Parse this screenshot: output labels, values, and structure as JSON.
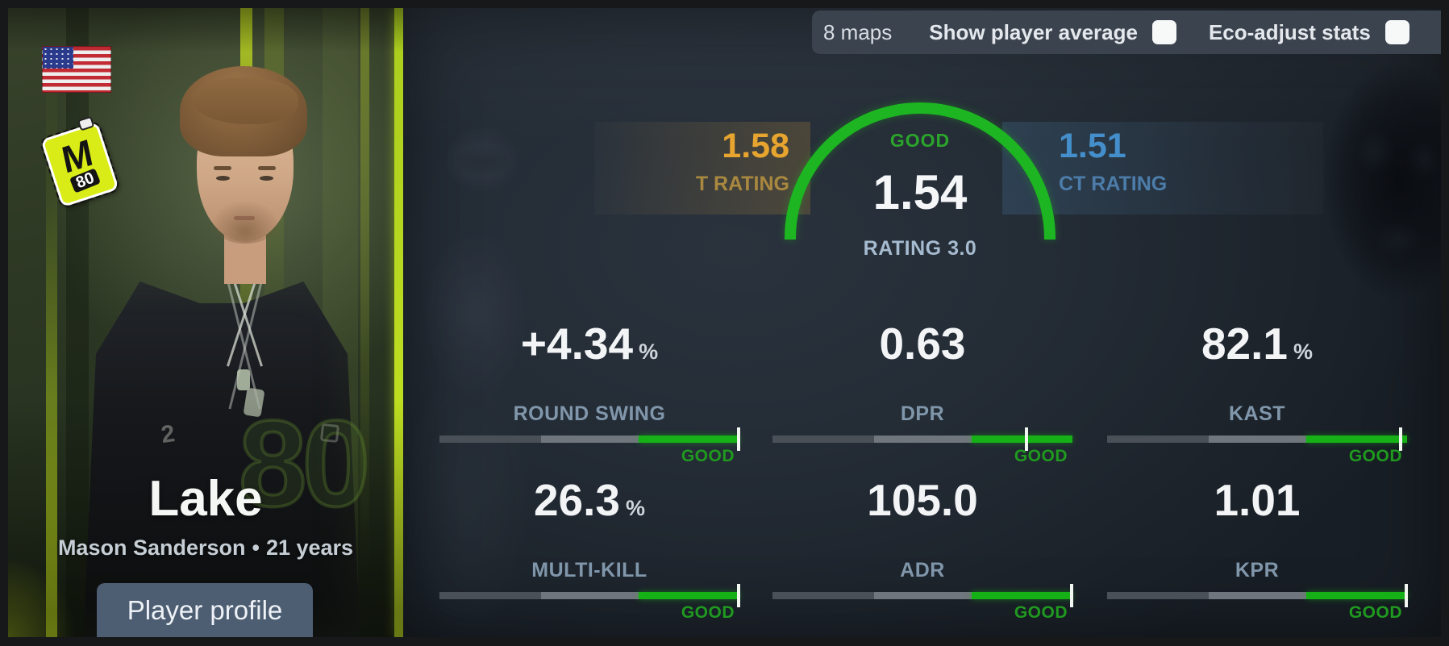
{
  "filters": {
    "maps_label": "8 maps",
    "toggles": [
      {
        "label": "Show player average",
        "checked": false
      },
      {
        "label": "Eco-adjust stats",
        "checked": false
      }
    ]
  },
  "player": {
    "nickname": "Lake",
    "real_name": "Mason Sanderson",
    "separator": "•",
    "age": "21 years",
    "country": "United States",
    "team": "M80",
    "team_logo_m": "M",
    "team_logo_80": "80",
    "watermark": "80",
    "profile_button_label": "Player profile"
  },
  "gauge": {
    "grade": "GOOD",
    "rating_value": "1.54",
    "rating_scale": "RATING 3.0",
    "t_rating_value": "1.58",
    "t_rating_label": "T RATING",
    "ct_rating_value": "1.51",
    "ct_rating_label": "CT RATING"
  },
  "stats": [
    {
      "value": "+4.34",
      "suffix": "%",
      "label": "ROUND SWING",
      "grade": "GOOD",
      "marker_pct": 100
    },
    {
      "value": "0.63",
      "suffix": "",
      "label": "DPR",
      "grade": "GOOD",
      "marker_pct": 85
    },
    {
      "value": "82.1",
      "suffix": "%",
      "label": "KAST",
      "grade": "GOOD",
      "marker_pct": 98
    },
    {
      "value": "26.3",
      "suffix": "%",
      "label": "MULTI-KILL",
      "grade": "GOOD",
      "marker_pct": 100
    },
    {
      "value": "105.0",
      "suffix": "",
      "label": "ADR",
      "grade": "GOOD",
      "marker_pct": 100
    },
    {
      "value": "1.01",
      "suffix": "",
      "label": "KPR",
      "grade": "GOOD",
      "marker_pct": 100
    }
  ],
  "colors": {
    "good_green": "#1db521",
    "t_orange": "#e7a42f",
    "ct_blue": "#448fcb",
    "grade_green": "#1f9a1f",
    "panel_bg": "#242c36"
  }
}
